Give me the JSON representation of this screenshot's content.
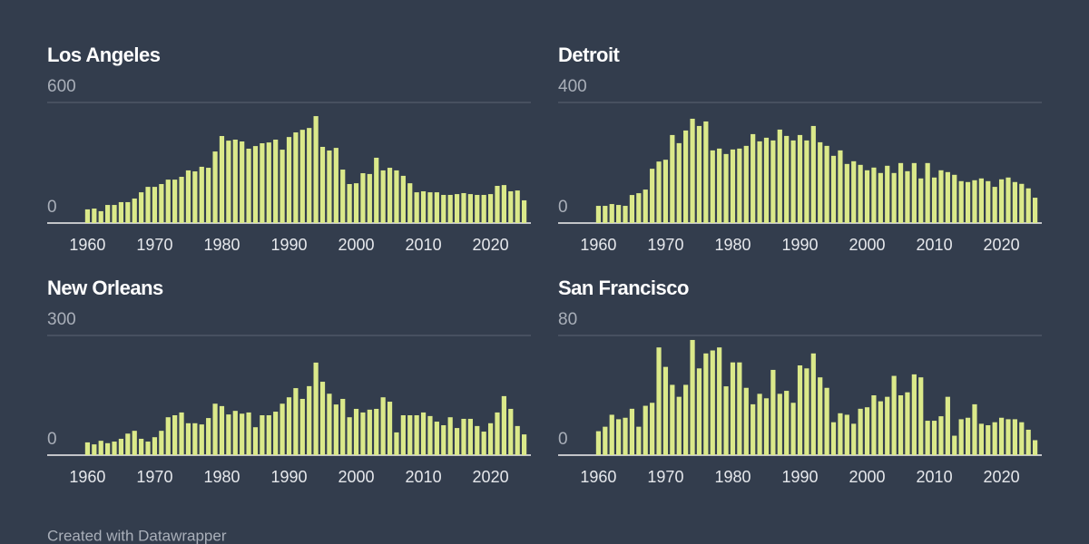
{
  "chart_data": [
    {
      "type": "bar",
      "title": "Los Angeles",
      "color": "#dbe98a",
      "x": [
        1960,
        1961,
        1962,
        1963,
        1964,
        1965,
        1966,
        1967,
        1968,
        1969,
        1970,
        1971,
        1972,
        1973,
        1974,
        1975,
        1976,
        1977,
        1978,
        1979,
        1980,
        1981,
        1982,
        1983,
        1984,
        1985,
        1986,
        1987,
        1988,
        1989,
        1990,
        1991,
        1992,
        1993,
        1994,
        1995,
        1996,
        1997,
        1998,
        1999,
        2000,
        2001,
        2002,
        2003,
        2004,
        2005,
        2006,
        2007,
        2008,
        2009,
        2010,
        2011,
        2012,
        2013,
        2014,
        2015,
        2016,
        2017,
        2018,
        2019,
        2020,
        2021,
        2022,
        2023,
        2024,
        2025
      ],
      "values": [
        68,
        72,
        59,
        90,
        90,
        104,
        104,
        122,
        153,
        180,
        180,
        194,
        216,
        216,
        230,
        262,
        257,
        280,
        275,
        356,
        433,
        410,
        415,
        406,
        370,
        383,
        397,
        401,
        415,
        365,
        428,
        451,
        464,
        473,
        532,
        379,
        361,
        374,
        266,
        194,
        198,
        248,
        244,
        325,
        262,
        275,
        262,
        235,
        198,
        153,
        158,
        153,
        153,
        140,
        140,
        144,
        149,
        144,
        140,
        140,
        144,
        185,
        189,
        158,
        162,
        113
      ],
      "xlim": [
        1954,
        2026
      ],
      "xticks": [
        1960,
        1970,
        1980,
        1990,
        2000,
        2010,
        2020
      ],
      "ylim": [
        0,
        600
      ],
      "yticks": [
        0,
        600
      ]
    },
    {
      "type": "bar",
      "title": "Detroit",
      "color": "#dbe98a",
      "x": [
        1960,
        1961,
        1962,
        1963,
        1964,
        1965,
        1966,
        1967,
        1968,
        1969,
        1970,
        1971,
        1972,
        1973,
        1974,
        1975,
        1976,
        1977,
        1978,
        1979,
        1980,
        1981,
        1982,
        1983,
        1984,
        1985,
        1986,
        1987,
        1988,
        1989,
        1990,
        1991,
        1992,
        1993,
        1994,
        1995,
        1996,
        1997,
        1998,
        1999,
        2000,
        2001,
        2002,
        2003,
        2004,
        2005,
        2006,
        2007,
        2008,
        2009,
        2010,
        2011,
        2012,
        2013,
        2014,
        2015,
        2016,
        2017,
        2018,
        2019,
        2020,
        2021,
        2022,
        2023,
        2024,
        2025
      ],
      "values": [
        57,
        57,
        63,
        60,
        57,
        93,
        99,
        111,
        180,
        204,
        210,
        292,
        265,
        307,
        346,
        322,
        337,
        241,
        247,
        229,
        244,
        247,
        256,
        295,
        271,
        283,
        274,
        310,
        289,
        274,
        292,
        274,
        322,
        268,
        256,
        223,
        241,
        196,
        205,
        193,
        175,
        184,
        166,
        190,
        166,
        199,
        172,
        199,
        148,
        199,
        151,
        175,
        169,
        160,
        139,
        136,
        142,
        148,
        139,
        120,
        145,
        151,
        136,
        130,
        115,
        84
      ],
      "xlim": [
        1954,
        2026
      ],
      "xticks": [
        1960,
        1970,
        1980,
        1990,
        2000,
        2010,
        2020
      ],
      "ylim": [
        0,
        400
      ],
      "yticks": [
        0,
        400
      ]
    },
    {
      "type": "bar",
      "title": "New Orleans",
      "color": "#dbe98a",
      "x": [
        1960,
        1961,
        1962,
        1963,
        1964,
        1965,
        1966,
        1967,
        1968,
        1969,
        1970,
        1971,
        1972,
        1973,
        1974,
        1975,
        1976,
        1977,
        1978,
        1979,
        1980,
        1981,
        1982,
        1983,
        1984,
        1985,
        1986,
        1987,
        1988,
        1989,
        1990,
        1991,
        1992,
        1993,
        1994,
        1995,
        1996,
        1997,
        1998,
        1999,
        2000,
        2001,
        2002,
        2003,
        2004,
        2005,
        2006,
        2007,
        2008,
        2009,
        2010,
        2011,
        2012,
        2013,
        2014,
        2015,
        2016,
        2017,
        2018,
        2019,
        2020,
        2021,
        2022,
        2023,
        2024,
        2025
      ],
      "values": [
        32,
        27,
        36,
        30,
        34,
        41,
        54,
        61,
        41,
        34,
        45,
        61,
        95,
        100,
        107,
        80,
        80,
        77,
        93,
        129,
        123,
        102,
        111,
        104,
        107,
        70,
        100,
        100,
        109,
        129,
        145,
        168,
        141,
        173,
        232,
        184,
        154,
        127,
        141,
        95,
        116,
        107,
        114,
        116,
        145,
        134,
        57,
        100,
        100,
        100,
        107,
        98,
        84,
        75,
        95,
        68,
        91,
        91,
        73,
        59,
        80,
        107,
        148,
        116,
        73,
        52
      ],
      "xlim": [
        1954,
        2026
      ],
      "xticks": [
        1960,
        1970,
        1980,
        1990,
        2000,
        2010,
        2020
      ],
      "ylim": [
        0,
        300
      ],
      "yticks": [
        0,
        300
      ]
    },
    {
      "type": "bar",
      "title": "San Francisco",
      "color": "#dbe98a",
      "x": [
        1960,
        1961,
        1962,
        1963,
        1964,
        1965,
        1966,
        1967,
        1968,
        1969,
        1970,
        1971,
        1972,
        1973,
        1974,
        1975,
        1976,
        1977,
        1978,
        1979,
        1980,
        1981,
        1982,
        1983,
        1984,
        1985,
        1986,
        1987,
        1988,
        1989,
        1990,
        1991,
        1992,
        1993,
        1994,
        1995,
        1996,
        1997,
        1998,
        1999,
        2000,
        2001,
        2002,
        2003,
        2004,
        2005,
        2006,
        2007,
        2008,
        2009,
        2010,
        2011,
        2012,
        2013,
        2014,
        2015,
        2016,
        2017,
        2018,
        2019,
        2020,
        2021,
        2022,
        2023,
        2024,
        2025
      ],
      "values": [
        16,
        19,
        27,
        24,
        25,
        31,
        19,
        33,
        35,
        72,
        59,
        47,
        39,
        47,
        77,
        58,
        68,
        70,
        72,
        46,
        62,
        62,
        45,
        34,
        41,
        38,
        57,
        41,
        43,
        35,
        60,
        58,
        68,
        52,
        45,
        22,
        28,
        27,
        21,
        31,
        32,
        40,
        36,
        39,
        53,
        40,
        42,
        54,
        52,
        23,
        23,
        26,
        39,
        13,
        24,
        25,
        34,
        21,
        20,
        22,
        25,
        24,
        24,
        22,
        17,
        10
      ],
      "xlim": [
        1954,
        2026
      ],
      "xticks": [
        1960,
        1970,
        1980,
        1990,
        2000,
        2010,
        2020
      ],
      "ylim": [
        0,
        80
      ],
      "yticks": [
        0,
        80
      ]
    }
  ],
  "footer": "Created with Datawrapper"
}
